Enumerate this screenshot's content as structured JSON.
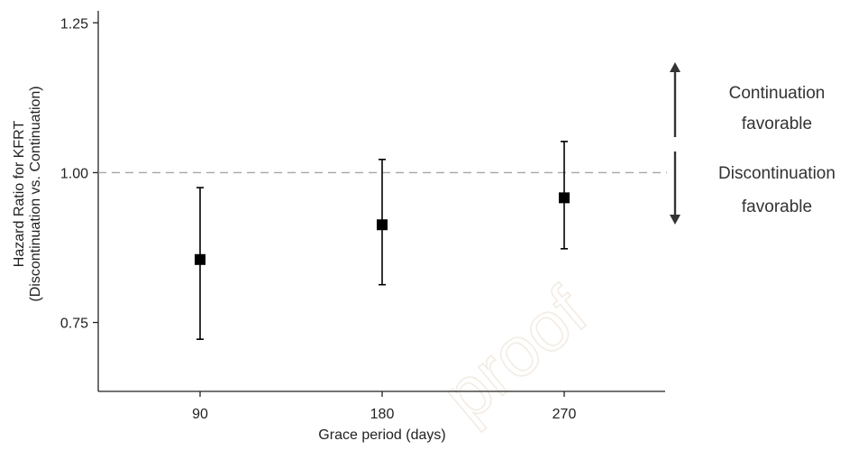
{
  "chart_data": {
    "type": "scatter",
    "title": "",
    "xlabel": "Grace period (days)",
    "ylabel_lines": [
      "Hazard Ratio for KFRT",
      "(Discontinuation vs. Continuation)"
    ],
    "x": [
      "90",
      "180",
      "270"
    ],
    "series": [
      {
        "estimate": [
          0.855,
          0.913,
          0.958
        ],
        "lower": [
          0.722,
          0.813,
          0.873
        ],
        "upper": [
          0.975,
          1.022,
          1.052
        ]
      }
    ],
    "reference_line": 1.0,
    "y_ticks": [
      0.75,
      1.0,
      1.25
    ],
    "y_tick_labels": [
      "0.75",
      "1.00",
      "1.25"
    ],
    "ylim": [
      0.635,
      1.27
    ],
    "annotations": {
      "upper_lines": [
        "Continuation",
        "favorable"
      ],
      "lower_lines": [
        "Discontinuation",
        "favorable"
      ]
    },
    "watermark": "proof",
    "colors": {
      "marker": "#000000",
      "reference": "#a6a6a6",
      "axis": "#222222",
      "watermark": "#f3ece4"
    }
  }
}
